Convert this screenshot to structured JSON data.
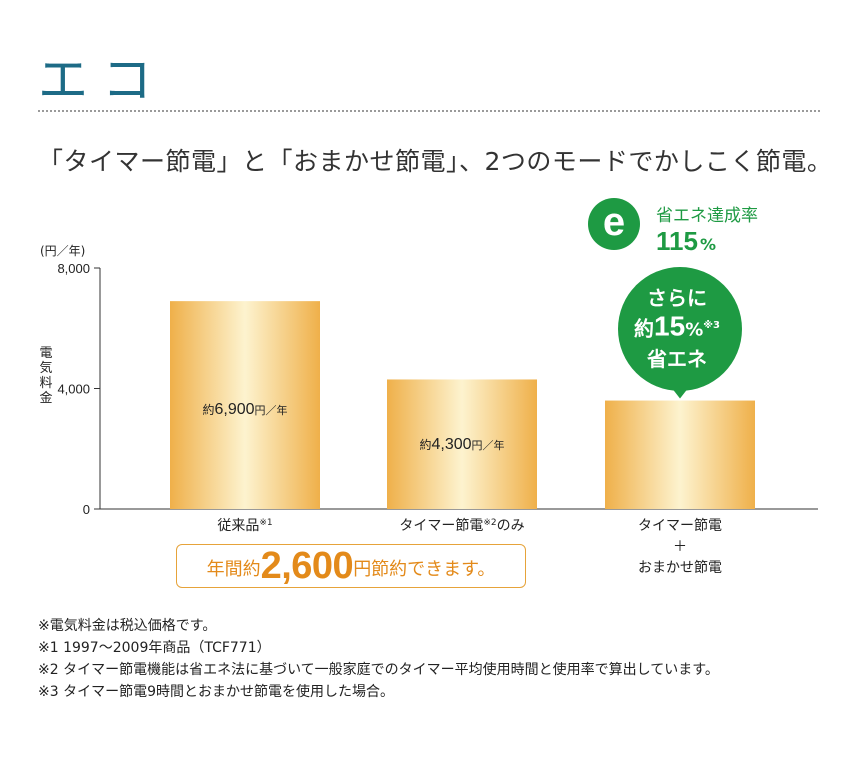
{
  "page": {
    "title": "エコ",
    "headline": "「タイマー節電」と「おまかせ節電」、2つのモードでかしこく節電。"
  },
  "eco_badge": {
    "letter": "e",
    "label": "省エネ達成率",
    "value": "115",
    "unit": "%"
  },
  "callout": {
    "line1": "さらに",
    "line2_pre": "約",
    "line2_value": "15",
    "line2_unit": "%",
    "line2_note": "※3",
    "line3": "省エネ"
  },
  "savings": {
    "prefix": "年間約",
    "amount": "2,600",
    "suffix": "円節約できます。"
  },
  "chart_data": {
    "type": "bar",
    "ylabel": "電気料金",
    "yunit": "(円／年)",
    "ylim": [
      0,
      8000
    ],
    "yticks": [
      "0",
      "4,000",
      "8,000"
    ],
    "ytick_values": [
      0,
      4000,
      8000
    ],
    "bar_color_edge": "#efb04a",
    "bar_color_center": "#fdf3cf",
    "bars": [
      {
        "label": "従来品",
        "note": "※1",
        "value": 6900,
        "data_label_pre": "約",
        "data_label_value": "6,900",
        "data_label_unit": "円／年"
      },
      {
        "label": "タイマー節電",
        "note": "※2",
        "label_post": "のみ",
        "value": 4300,
        "data_label_pre": "約",
        "data_label_value": "4,300",
        "data_label_unit": "円／年"
      },
      {
        "label": "タイマー節電",
        "label_line2": "＋",
        "label_line3": "おまかせ節電",
        "value": 3600
      }
    ]
  },
  "footnotes": [
    "※電気料金は税込価格です。",
    "※1 1997～2009年商品（TCF771）",
    "※2 タイマー節電機能は省エネ法に基づいて一般家庭でのタイマー平均使用時間と使用率で算出しています。",
    "※3 タイマー節電9時間とおまかせ節電を使用した場合。"
  ],
  "colors": {
    "title": "#1d6b86",
    "eco_green": "#1e9a43",
    "savings_orange": "#e38a1a",
    "box_border": "#e6a33a"
  }
}
